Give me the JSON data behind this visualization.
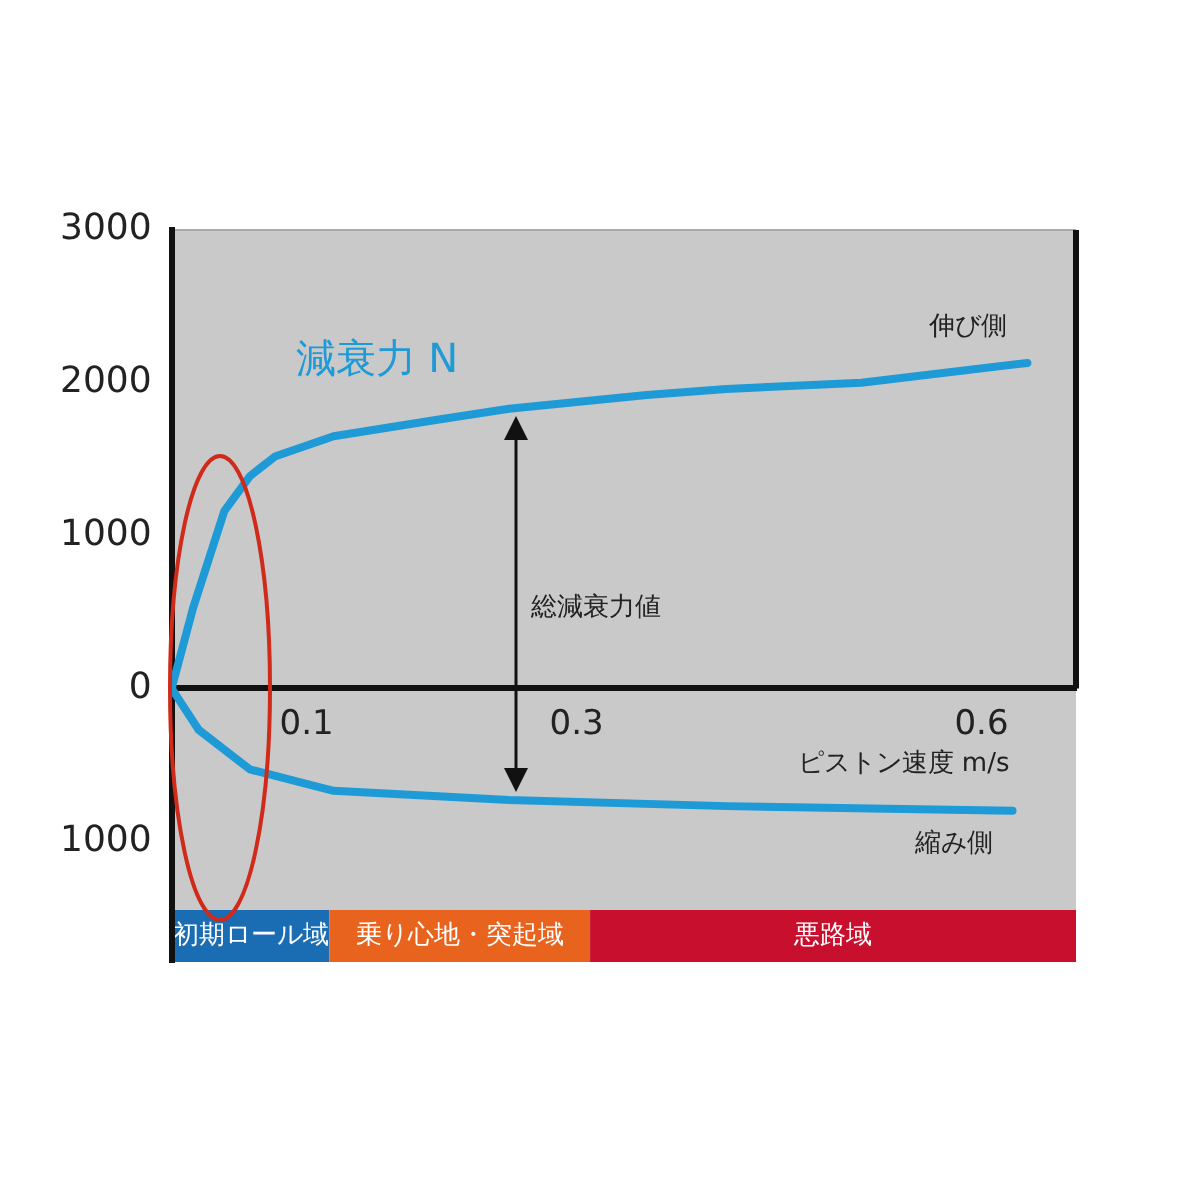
{
  "chart_data": {
    "type": "line",
    "xlabel": "ピストン速度 m/s",
    "ylabel": "減衰力 N",
    "xlim": [
      0,
      0.67
    ],
    "xticks": [
      0.1,
      0.3,
      0.6
    ],
    "ylim": [
      -1790,
      3000
    ],
    "yticks": [
      3000,
      2000,
      1000,
      0,
      {
        "value": -1000,
        "label": "1000"
      }
    ],
    "grid": false,
    "legend": false,
    "marker": "none",
    "line_style": "solid",
    "series": [
      {
        "name": "伸び側",
        "color": "#1e9ad6",
        "x": [
          0,
          0.016,
          0.039,
          0.058,
          0.077,
          0.12,
          0.198,
          0.25,
          0.352,
          0.411,
          0.511,
          0.634
        ],
        "values": [
          0,
          530,
          1160,
          1390,
          1520,
          1650,
          1760,
          1830,
          1920,
          1960,
          2000,
          2130
        ]
      },
      {
        "name": "縮み側",
        "color": "#1e9ad6",
        "x": [
          0,
          0.02,
          0.058,
          0.12,
          0.25,
          0.411,
          0.623
        ],
        "values": [
          0,
          -270,
          -530,
          -670,
          -730,
          -770,
          -800
        ]
      }
    ],
    "annotations": [
      "総減衰力値"
    ],
    "bands": [
      {
        "axis": "x",
        "from": 0,
        "to": 0.117,
        "label": "初期ロール域",
        "color": "#1b6db3"
      },
      {
        "axis": "x",
        "from": 0.117,
        "to": 0.31,
        "label": "乗り心地・突起域",
        "color": "#e8641e"
      },
      {
        "axis": "x",
        "from": 0.31,
        "to": 0.67,
        "label": "悪路域",
        "color": "#c8102e"
      }
    ]
  }
}
